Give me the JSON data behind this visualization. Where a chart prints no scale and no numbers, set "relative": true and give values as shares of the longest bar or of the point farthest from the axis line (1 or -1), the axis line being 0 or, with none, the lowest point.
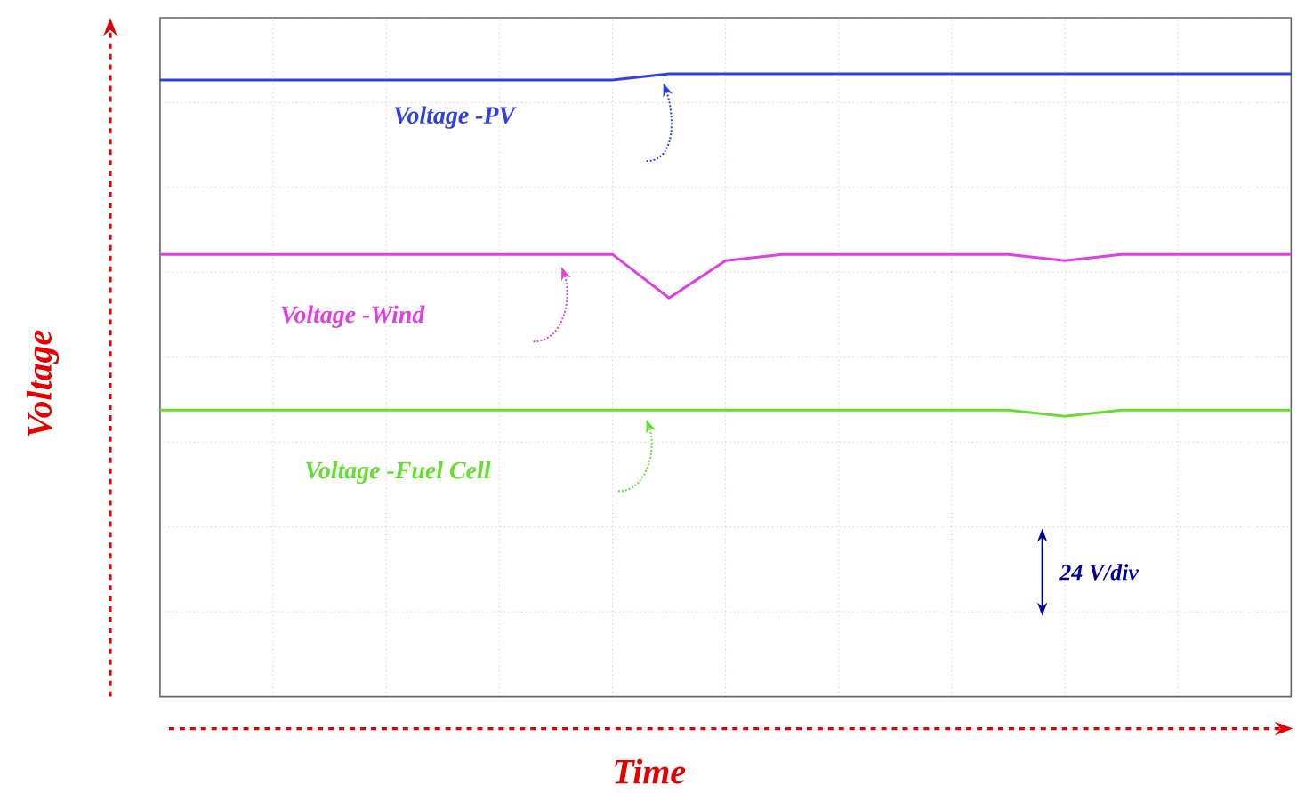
{
  "chart_data": {
    "type": "line",
    "relative": true,
    "grid": true,
    "xlabel": "Time",
    "ylabel": "Voltage",
    "categories": [
      null,
      null,
      null,
      null,
      null,
      null,
      null,
      null,
      null,
      null,
      null,
      null,
      null,
      null,
      null,
      null,
      null,
      null,
      null,
      null,
      null
    ],
    "series": [
      {
        "name": "Voltage -PV",
        "color": "#3040e0",
        "values": [
          0.99,
          0.99,
          0.99,
          0.99,
          0.99,
          0.99,
          0.99,
          0.99,
          0.99,
          1.0,
          1.0,
          1.0,
          1.0,
          1.0,
          1.0,
          1.0,
          1.0,
          1.0,
          1.0,
          1.0,
          1.0
        ]
      },
      {
        "name": "Voltage -Wind",
        "color": "#e040e0",
        "values": [
          0.71,
          0.71,
          0.71,
          0.71,
          0.71,
          0.71,
          0.71,
          0.71,
          0.71,
          0.64,
          0.7,
          0.71,
          0.71,
          0.71,
          0.71,
          0.71,
          0.7,
          0.71,
          0.71,
          0.71,
          0.71
        ]
      },
      {
        "name": "Voltage -Fuel Cell",
        "color": "#66dd33",
        "values": [
          0.46,
          0.46,
          0.46,
          0.46,
          0.46,
          0.46,
          0.46,
          0.46,
          0.46,
          0.46,
          0.46,
          0.46,
          0.46,
          0.46,
          0.46,
          0.46,
          0.45,
          0.46,
          0.46,
          0.46,
          0.46
        ]
      }
    ],
    "annotations": [
      "24 V/div"
    ]
  }
}
